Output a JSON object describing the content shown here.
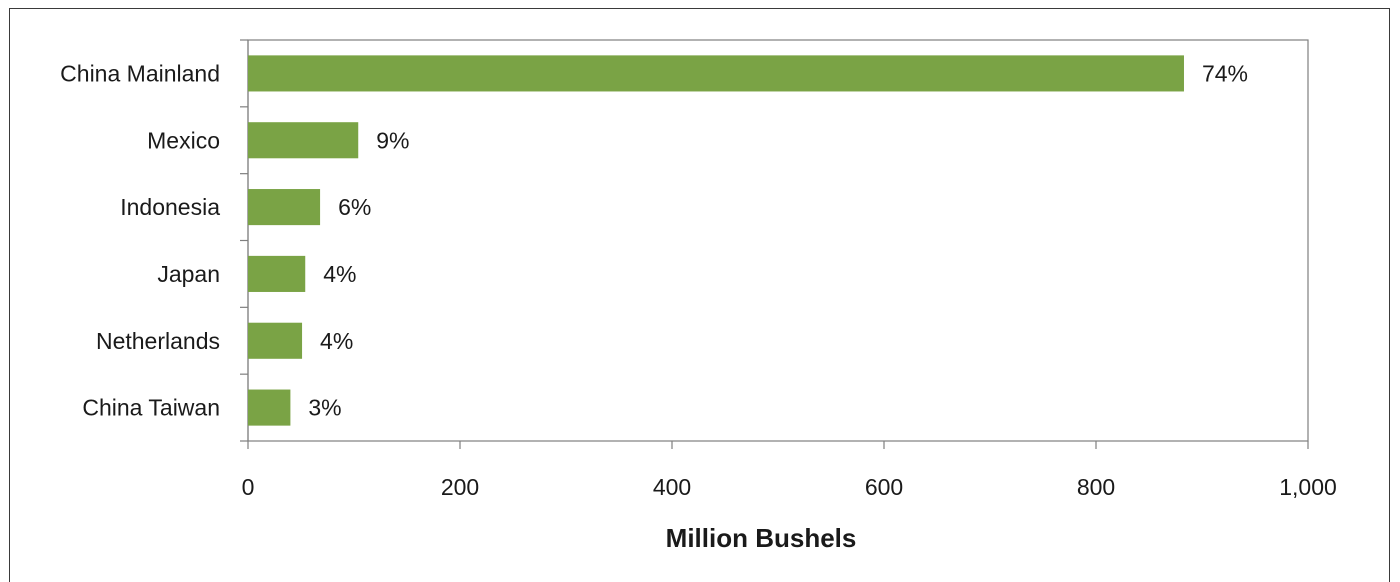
{
  "chart_data": {
    "type": "bar",
    "orientation": "horizontal",
    "categories": [
      "China Mainland",
      "Mexico",
      "Indonesia",
      "Japan",
      "Netherlands",
      "China Taiwan"
    ],
    "values": [
      883,
      104,
      68,
      54,
      51,
      40
    ],
    "data_labels": [
      "74%",
      "9%",
      "6%",
      "4%",
      "4%",
      "3%"
    ],
    "xlabel": "Million Bushels",
    "xlim": [
      0,
      1000
    ],
    "x_ticks": [
      0,
      200,
      400,
      600,
      800,
      1000
    ],
    "x_tick_labels": [
      "0",
      "200",
      "400",
      "600",
      "800",
      "1,000"
    ],
    "grid": false,
    "bar_color": "#7aa345"
  }
}
